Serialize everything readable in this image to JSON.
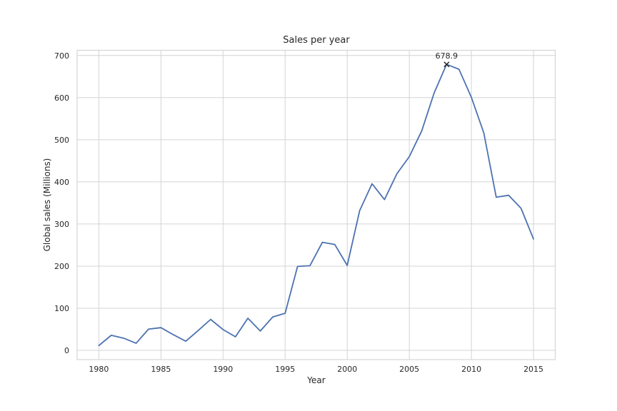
{
  "chart_data": {
    "type": "line",
    "title": "Sales per year",
    "xlabel": "Year",
    "ylabel": "Global sales (Millions)",
    "x": [
      1980,
      1981,
      1982,
      1983,
      1984,
      1985,
      1986,
      1987,
      1988,
      1989,
      1990,
      1991,
      1992,
      1993,
      1994,
      1995,
      1996,
      1997,
      1998,
      1999,
      2000,
      2001,
      2002,
      2003,
      2004,
      2005,
      2006,
      2007,
      2008,
      2009,
      2010,
      2011,
      2012,
      2013,
      2014,
      2015
    ],
    "series": [
      {
        "name": "Global sales",
        "values": [
          11.4,
          35.8,
          28.9,
          16.8,
          50.4,
          53.9,
          37.1,
          21.7,
          47.2,
          73.5,
          49.4,
          32.2,
          76.2,
          46.0,
          79.2,
          88.1,
          199.2,
          201.0,
          256.5,
          251.3,
          201.6,
          331.5,
          395.5,
          357.9,
          419.3,
          459.9,
          521.0,
          611.1,
          678.9,
          667.3,
          600.5,
          516.0,
          363.5,
          368.1,
          337.1,
          264.4
        ]
      }
    ],
    "annotation": {
      "text": "678.9",
      "x": 2008,
      "y": 678.9,
      "marker": "x"
    },
    "x_ticks": [
      1980,
      1985,
      1990,
      1995,
      2000,
      2005,
      2010,
      2015
    ],
    "y_ticks": [
      0,
      100,
      200,
      300,
      400,
      500,
      600,
      700
    ],
    "xlim": [
      1978.25,
      2016.75
    ],
    "ylim": [
      -22,
      712.3
    ],
    "grid": true,
    "legend": null,
    "colors": {
      "line": "#4c72b0",
      "grid": "#d4d4d4",
      "spine": "#d4d4d4",
      "text": "#262626",
      "marker": "#262626",
      "background": "#ffffff"
    }
  }
}
